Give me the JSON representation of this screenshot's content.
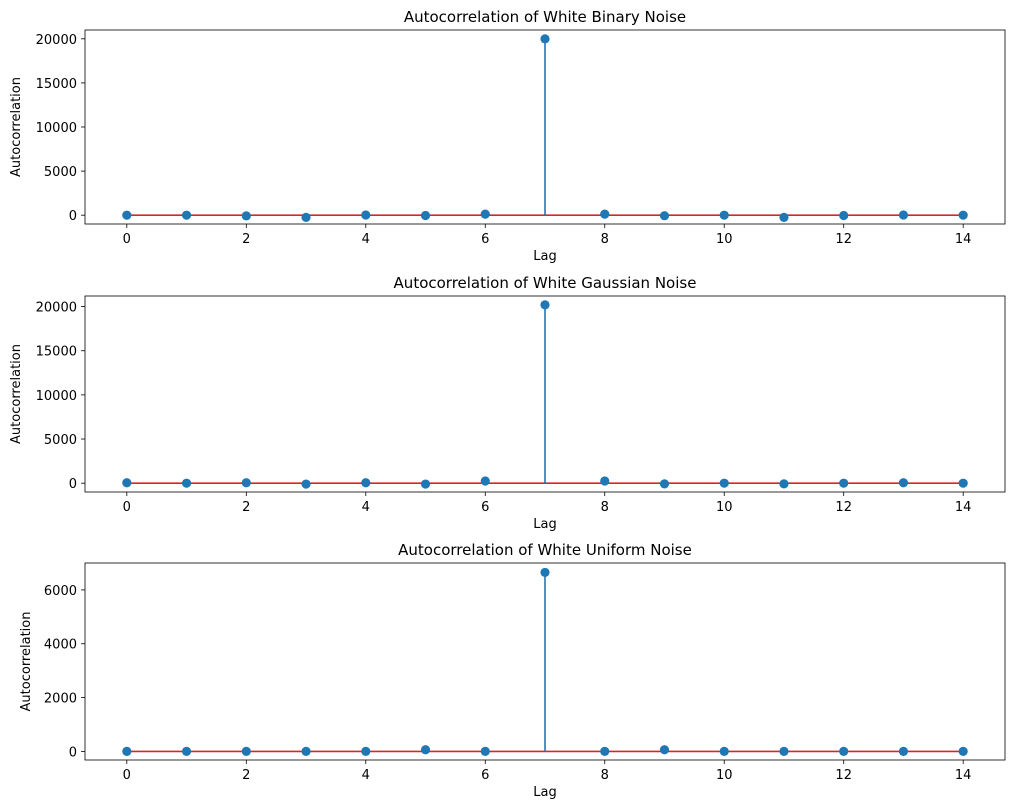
{
  "chart_data": [
    {
      "type": "stem",
      "title": "Autocorrelation of White Binary Noise",
      "xlabel": "Lag",
      "ylabel": "Autocorrelation",
      "xlim": [
        -0.7,
        14.7
      ],
      "ylim": [
        -1000,
        21000
      ],
      "xticks": [
        0,
        2,
        4,
        6,
        8,
        10,
        12,
        14
      ],
      "yticks": [
        0,
        5000,
        10000,
        15000,
        20000
      ],
      "x": [
        0,
        1,
        2,
        3,
        4,
        5,
        6,
        7,
        8,
        9,
        10,
        11,
        12,
        13,
        14
      ],
      "values": [
        0,
        0,
        -80,
        -250,
        20,
        -40,
        120,
        20000,
        120,
        -60,
        0,
        -250,
        -40,
        20,
        0
      ],
      "baseline": 0,
      "colors": {
        "stem": "#1f77b4",
        "marker": "#1f77b4",
        "baseline": "#d62728"
      },
      "grid": false
    },
    {
      "type": "stem",
      "title": "Autocorrelation of White Gaussian Noise",
      "xlabel": "Lag",
      "ylabel": "Autocorrelation",
      "xlim": [
        -0.7,
        14.7
      ],
      "ylim": [
        -1000,
        21200
      ],
      "xticks": [
        0,
        2,
        4,
        6,
        8,
        10,
        12,
        14
      ],
      "yticks": [
        0,
        5000,
        10000,
        15000,
        20000
      ],
      "x": [
        0,
        1,
        2,
        3,
        4,
        5,
        6,
        7,
        8,
        9,
        10,
        11,
        12,
        13,
        14
      ],
      "values": [
        50,
        0,
        50,
        -100,
        50,
        -100,
        250,
        20200,
        250,
        -80,
        0,
        -80,
        0,
        50,
        0
      ],
      "baseline": 0,
      "colors": {
        "stem": "#1f77b4",
        "marker": "#1f77b4",
        "baseline": "#d62728"
      },
      "grid": false
    },
    {
      "type": "stem",
      "title": "Autocorrelation of White Uniform Noise",
      "xlabel": "Lag",
      "ylabel": "Autocorrelation",
      "xlim": [
        -0.7,
        14.7
      ],
      "ylim": [
        -320,
        7000
      ],
      "xticks": [
        0,
        2,
        4,
        6,
        8,
        10,
        12,
        14
      ],
      "yticks": [
        0,
        2000,
        4000,
        6000
      ],
      "x": [
        0,
        1,
        2,
        3,
        4,
        5,
        6,
        7,
        8,
        9,
        10,
        11,
        12,
        13,
        14
      ],
      "values": [
        0,
        0,
        0,
        0,
        0,
        60,
        0,
        6650,
        0,
        60,
        0,
        0,
        0,
        0,
        0
      ],
      "baseline": 0,
      "colors": {
        "stem": "#1f77b4",
        "marker": "#1f77b4",
        "baseline": "#d62728"
      },
      "grid": false
    }
  ]
}
